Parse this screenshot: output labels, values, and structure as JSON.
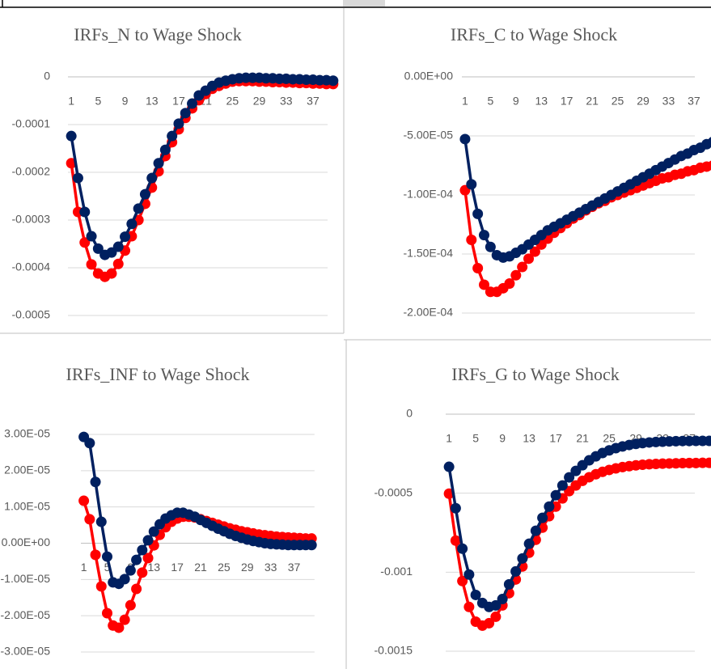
{
  "chart_data": [
    {
      "type": "line",
      "title": "IRFs_N to Wage Shock",
      "categories": [
        1,
        null,
        null,
        null,
        5,
        null,
        null,
        null,
        9,
        null,
        null,
        null,
        13,
        null,
        null,
        null,
        17,
        null,
        null,
        null,
        21,
        null,
        null,
        null,
        25,
        null,
        null,
        null,
        29,
        null,
        null,
        null,
        33,
        null,
        null,
        null,
        37,
        null,
        null,
        null
      ],
      "series": [
        {
          "color": "#ff0000",
          "values": [
            -0.000181,
            -0.000283,
            -0.000347,
            -0.000393,
            -0.000412,
            -0.000419,
            -0.000412,
            -0.000392,
            -0.000364,
            -0.000334,
            -0.0003,
            -0.000266,
            -0.000232,
            -0.000198,
            -0.000166,
            -0.000137,
            -0.00011,
            -8.6e-05,
            -6.6e-05,
            -4.9e-05,
            -3.6e-05,
            -2.5e-05,
            -1.9e-05,
            -1.4e-05,
            -1e-05,
            -9e-06,
            -9e-06,
            -9e-06,
            -1e-05,
            -1e-05,
            -1.1e-05,
            -1.1e-05,
            -1.2e-05,
            -1.2e-05,
            -1.3e-05,
            -1.3e-05,
            -1.4e-05,
            -1.4e-05,
            -1.5e-05,
            -1.5e-05
          ]
        },
        {
          "color": "#002060",
          "values": [
            -0.000124,
            -0.000212,
            -0.000283,
            -0.000334,
            -0.00036,
            -0.000373,
            -0.000368,
            -0.000356,
            -0.000335,
            -0.000308,
            -0.000276,
            -0.000246,
            -0.000212,
            -0.000181,
            -0.000153,
            -0.000124,
            -9.8e-05,
            -7.6e-05,
            -5.6e-05,
            -3.9e-05,
            -2.9e-05,
            -1.9e-05,
            -1.2e-05,
            -8e-06,
            -5e-06,
            -3e-06,
            -2e-06,
            -2e-06,
            -2e-06,
            -3e-06,
            -3e-06,
            -4e-06,
            -4e-06,
            -5e-06,
            -5e-06,
            -6e-06,
            -6e-06,
            -7e-06,
            -7e-06,
            -8e-06
          ]
        }
      ],
      "ylim": [
        -0.0005,
        0
      ],
      "yticks": [
        0,
        -0.0001,
        -0.0002,
        -0.0003,
        -0.0004,
        -0.0005
      ],
      "grid": true
    },
    {
      "type": "line",
      "title": "IRFs_C to Wage Shock",
      "categories": [
        1,
        null,
        null,
        null,
        5,
        null,
        null,
        null,
        9,
        null,
        null,
        null,
        13,
        null,
        null,
        null,
        17,
        null,
        null,
        null,
        21,
        null,
        null,
        null,
        25,
        null,
        null,
        null,
        29,
        null,
        null,
        null,
        33,
        null,
        null,
        null,
        37,
        null,
        null,
        null
      ],
      "series": [
        {
          "color": "#ff0000",
          "values": [
            -9.6e-05,
            -0.000138,
            -0.000162,
            -0.000176,
            -0.000182,
            -0.000182,
            -0.000179,
            -0.000175,
            -0.000168,
            -0.000161,
            -0.000154,
            -0.000148,
            -0.000142,
            -0.000137,
            -0.000132,
            -0.000128,
            -0.000124,
            -0.00012,
            -0.000117,
            -0.000113,
            -0.00011,
            -0.000107,
            -0.000105,
            -0.000102,
            -0.0001,
            -9.8e-05,
            -9.6e-05,
            -9.4e-05,
            -9.2e-05,
            -9e-05,
            -8.8e-05,
            -8.6e-05,
            -8.5e-05,
            -8.3e-05,
            -8.2e-05,
            -8e-05,
            -7.9e-05,
            -7.7e-05,
            -7.6e-05,
            -7.5e-05
          ]
        },
        {
          "color": "#002060",
          "values": [
            -5.27e-05,
            -9.1e-05,
            -0.000116,
            -0.000134,
            -0.000144,
            -0.000151,
            -0.000153,
            -0.000152,
            -0.000149,
            -0.000146,
            -0.000142,
            -0.000138,
            -0.000134,
            -0.00013,
            -0.000127,
            -0.000124,
            -0.000121,
            -0.000118,
            -0.000115,
            -0.000112,
            -0.000109,
            -0.000106,
            -0.000103,
            -0.0001,
            -9.7e-05,
            -9.4e-05,
            -9.1e-05,
            -8.8e-05,
            -8.5e-05,
            -8.2e-05,
            -7.9e-05,
            -7.6e-05,
            -7.3e-05,
            -7e-05,
            -6.7e-05,
            -6.5e-05,
            -6.2e-05,
            -6e-05,
            -5.7e-05,
            -5.5e-05
          ]
        }
      ],
      "ylim": [
        -0.0002,
        0
      ],
      "yticks": [
        {
          "value": 0,
          "label": "0.00E+00"
        },
        {
          "value": -5e-05,
          "label": "-5.00E-05"
        },
        {
          "value": -0.0001,
          "label": "-1.00E-04"
        },
        {
          "value": -0.00015,
          "label": "-1.50E-04"
        },
        {
          "value": -0.0002,
          "label": "-2.00E-04"
        }
      ],
      "grid": true
    },
    {
      "type": "line",
      "title": "IRFs_INF to Wage Shock",
      "categories": [
        1,
        null,
        null,
        null,
        5,
        null,
        null,
        null,
        9,
        null,
        null,
        null,
        13,
        null,
        null,
        null,
        17,
        null,
        null,
        null,
        21,
        null,
        null,
        null,
        25,
        null,
        null,
        null,
        29,
        null,
        null,
        null,
        33,
        null,
        null,
        null,
        37,
        null,
        null,
        null
      ],
      "series": [
        {
          "color": "#ff0000",
          "values": [
            1.17e-05,
            6.6e-06,
            -3.2e-06,
            -1.19e-05,
            -1.93e-05,
            -2.27e-05,
            -2.33e-05,
            -2.11e-05,
            -1.71e-05,
            -1.26e-05,
            -8.1e-06,
            -4.1e-06,
            -6e-07,
            2.3e-06,
            4.4e-06,
            5.9e-06,
            6.8e-06,
            7.3e-06,
            7.3e-06,
            7.1e-06,
            6.6e-06,
            6.1e-06,
            5.6e-06,
            5.1e-06,
            4.6e-06,
            4.1e-06,
            3.7e-06,
            3.3e-06,
            3e-06,
            2.7e-06,
            2.4e-06,
            2.2e-06,
            2e-06,
            1.8e-06,
            1.7e-06,
            1.6e-06,
            1.5e-06,
            1.4e-06,
            1.3e-06,
            1.3e-06
          ]
        },
        {
          "color": "#002060",
          "values": [
            2.93e-05,
            2.76e-05,
            1.69e-05,
            5.9e-06,
            -3.7e-06,
            -1.08e-05,
            -1.12e-05,
            -9.9e-06,
            -7.5e-06,
            -4.6e-06,
            -1.9e-06,
            8e-07,
            3.2e-06,
            5.2e-06,
            6.8e-06,
            7.7e-06,
            8.4e-06,
            8.4e-06,
            7.9e-06,
            7.3e-06,
            6.4e-06,
            5.6e-06,
            4.8e-06,
            4e-06,
            3.3e-06,
            2.6e-06,
            2e-06,
            1.5e-06,
            1e-06,
            6e-07,
            3e-07,
            0,
            -2e-07,
            -3e-07,
            -4e-07,
            -5e-07,
            -5e-07,
            -5e-07,
            -5e-07,
            -5e-07
          ]
        }
      ],
      "ylim": [
        -3e-05,
        3e-05
      ],
      "yticks": [
        {
          "value": 3e-05,
          "label": "3.00E-05"
        },
        {
          "value": 2e-05,
          "label": "2.00E-05"
        },
        {
          "value": 1e-05,
          "label": "1.00E-05"
        },
        {
          "value": 0,
          "label": "0.00E+00"
        },
        {
          "value": -1e-05,
          "label": "-1.00E-05"
        },
        {
          "value": -2e-05,
          "label": "-2.00E-05"
        },
        {
          "value": -3e-05,
          "label": "-3.00E-05"
        }
      ],
      "grid": true
    },
    {
      "type": "line",
      "title": "IRFs_G to Wage Shock",
      "categories": [
        1,
        null,
        null,
        null,
        5,
        null,
        null,
        null,
        9,
        null,
        null,
        null,
        13,
        null,
        null,
        null,
        17,
        null,
        null,
        null,
        21,
        null,
        null,
        null,
        25,
        null,
        null,
        null,
        29,
        null,
        null,
        null,
        33,
        null,
        null,
        null,
        37,
        null,
        null,
        null
      ],
      "series": [
        {
          "color": "#ff0000",
          "values": [
            -0.000503,
            -0.0008,
            -0.001056,
            -0.00122,
            -0.001313,
            -0.001338,
            -0.001323,
            -0.001282,
            -0.00121,
            -0.001133,
            -0.001046,
            -0.000964,
            -0.000877,
            -0.000795,
            -0.000718,
            -0.000646,
            -0.000585,
            -0.000533,
            -0.000487,
            -0.000451,
            -0.000422,
            -0.000399,
            -0.00038,
            -0.000365,
            -0.000353,
            -0.000343,
            -0.000335,
            -0.000329,
            -0.000324,
            -0.00032,
            -0.000317,
            -0.000315,
            -0.000313,
            -0.000312,
            -0.000311,
            -0.00031,
            -0.000309,
            -0.000309,
            -0.000308,
            -0.000308
          ]
        },
        {
          "color": "#002060",
          "values": [
            -0.000333,
            -0.000595,
            -0.000851,
            -0.001015,
            -0.001144,
            -0.001195,
            -0.00122,
            -0.00121,
            -0.00117,
            -0.001077,
            -0.000995,
            -0.000913,
            -0.00082,
            -0.000738,
            -0.000656,
            -0.000585,
            -0.000513,
            -0.000451,
            -0.0004,
            -0.000359,
            -0.000323,
            -0.000292,
            -0.000267,
            -0.000246,
            -0.000229,
            -0.000215,
            -0.000204,
            -0.000195,
            -0.000188,
            -0.000183,
            -0.000179,
            -0.000176,
            -0.000174,
            -0.000172,
            -0.000171,
            -0.00017,
            -0.00017,
            -0.000169,
            -0.000169,
            -0.000169
          ]
        }
      ],
      "ylim": [
        -0.0015,
        0
      ],
      "yticks": [
        0,
        -0.0005,
        -0.001,
        -0.0015
      ],
      "grid": true
    }
  ]
}
